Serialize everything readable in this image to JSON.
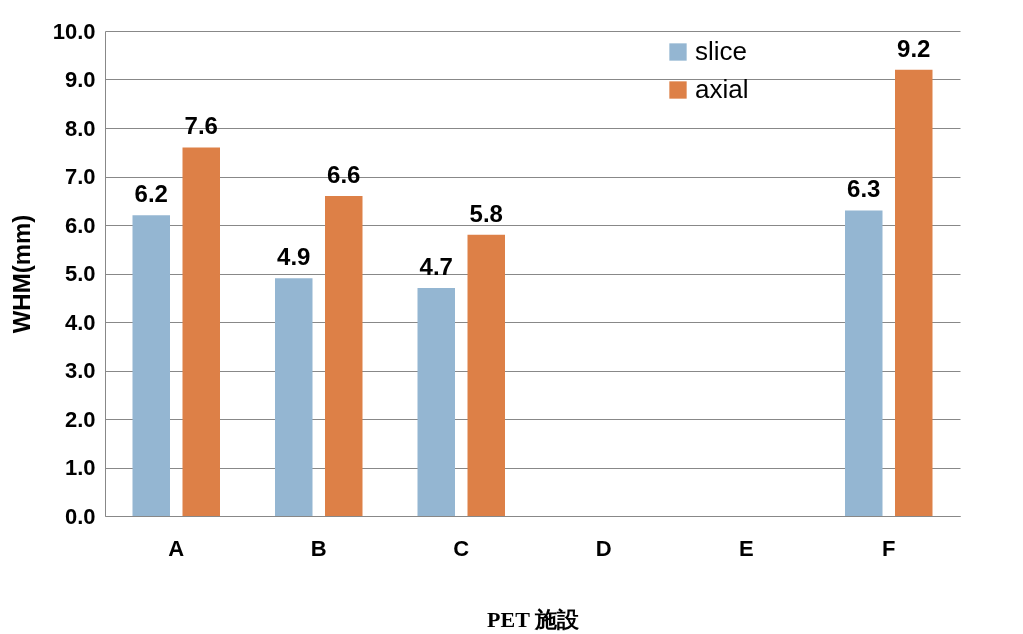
{
  "chart_data": {
    "type": "bar",
    "xlabel": "PET 施設",
    "ylabel": "WHM(mm)",
    "categories": [
      "A",
      "B",
      "C",
      "D",
      "E",
      "F"
    ],
    "series": [
      {
        "name": "slice",
        "color": "#94b6d2",
        "values": [
          6.2,
          4.9,
          4.7,
          null,
          null,
          6.3
        ]
      },
      {
        "name": "axial",
        "color": "#dd8047",
        "values": [
          7.6,
          6.6,
          5.8,
          null,
          null,
          9.2
        ]
      }
    ],
    "ylim": [
      0,
      10
    ],
    "yticks": [
      {
        "value": 0,
        "label": "0.0"
      },
      {
        "value": 1,
        "label": "1.0"
      },
      {
        "value": 2,
        "label": "2.0"
      },
      {
        "value": 3,
        "label": "3.0"
      },
      {
        "value": 4,
        "label": "4.0"
      },
      {
        "value": 5,
        "label": "5.0"
      },
      {
        "value": 6,
        "label": "6.0"
      },
      {
        "value": 7,
        "label": "7.0"
      },
      {
        "value": 8,
        "label": "8.0"
      },
      {
        "value": 9,
        "label": "9.0"
      },
      {
        "value": 10,
        "label": "10.0"
      }
    ],
    "grid": "y",
    "legend": "top right",
    "data_labels": true
  }
}
